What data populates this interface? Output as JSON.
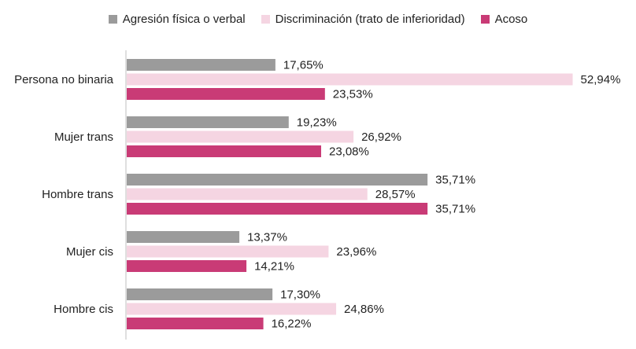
{
  "chart_data": {
    "type": "bar",
    "orientation": "horizontal",
    "categories": [
      "Persona no binaria",
      "Mujer trans",
      "Hombre trans",
      "Mujer cis",
      "Hombre cis"
    ],
    "series": [
      {
        "name": "Agresión física o verbal",
        "color": "#9b9b9b",
        "values": [
          17.65,
          19.23,
          35.71,
          13.37,
          17.3
        ],
        "labels": [
          "17,65%",
          "19,23%",
          "35,71%",
          "13,37%",
          "17,30%"
        ]
      },
      {
        "name": "Discriminación (trato de inferioridad)",
        "color": "#f5d5e2",
        "values": [
          52.94,
          26.92,
          28.57,
          23.96,
          24.86
        ],
        "labels": [
          "52,94%",
          "26,92%",
          "28,57%",
          "23,96%",
          "24,86%"
        ]
      },
      {
        "name": "Acoso",
        "color": "#c93b76",
        "values": [
          23.53,
          23.08,
          35.71,
          14.21,
          16.22
        ],
        "labels": [
          "23,53%",
          "23,08%",
          "35,71%",
          "14,21%",
          "16,22%"
        ]
      }
    ],
    "xlim": [
      0,
      57
    ],
    "grid": false,
    "legend_position": "top"
  }
}
